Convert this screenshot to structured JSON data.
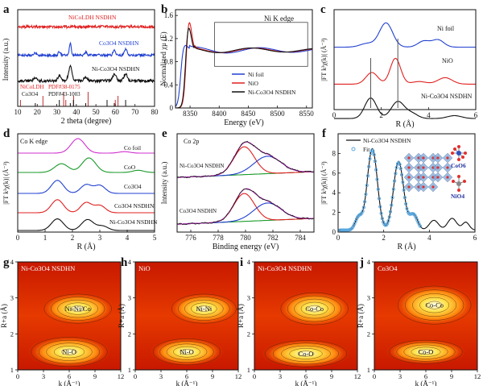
{
  "colors": {
    "black": "#111111",
    "red": "#e02020",
    "blue": "#2040d0",
    "green": "#1a9a2a",
    "magenta": "#d030d0",
    "pdfRed": "#c03030",
    "fit": "#5aa8e0"
  },
  "panels": [
    {
      "letter": "a",
      "type": "line",
      "xlabel": "2 theta (degree)",
      "ylabel": "Intensity (a.u.)",
      "xlim": [
        10,
        80
      ],
      "xticks": [
        10,
        20,
        30,
        40,
        50,
        60,
        70,
        80
      ],
      "labels": [
        {
          "text": "NiCoLDH NSDHN",
          "color": "red"
        },
        {
          "text": "Co3O4 NSDHN",
          "color": "blue"
        },
        {
          "text": "Ni-Co3O4 NSDHN",
          "color": "black"
        },
        {
          "text": "NiCoLDH",
          "color": "red"
        },
        {
          "text": "PDF#38-0175",
          "color": "red"
        },
        {
          "text": "Co3O4",
          "color": "black"
        },
        {
          "text": "PDF#43-1003",
          "color": "black"
        }
      ],
      "ldh_sticks": [
        11.4,
        22.9,
        33.5,
        34.6,
        38.6,
        46.0,
        59.9,
        61.3
      ],
      "co3o4_sticks": [
        19.0,
        31.3,
        36.9,
        38.5,
        44.8,
        55.7,
        59.4,
        65.2
      ]
    },
    {
      "letter": "b",
      "type": "line",
      "title": "Ni K edge",
      "xlabel": "Energy (eV)",
      "ylabel": "Normalized χμ (E)",
      "xlim": [
        8325,
        8560
      ],
      "ylim": [
        0,
        1.7
      ],
      "xticks": [
        8350,
        8400,
        8450,
        8500,
        8550
      ],
      "yticks": [
        0.0,
        0.4,
        0.8,
        1.2,
        1.6
      ],
      "legend": [
        "Ni foil",
        "NiO",
        "Ni-Co3O4 NSDHN"
      ]
    },
    {
      "letter": "c",
      "type": "line",
      "xlabel": "R (Å)",
      "ylabel": "|FT k³χ(k)| (Å⁻³)",
      "xlim": [
        0,
        6
      ],
      "xticks": [
        0,
        2,
        4,
        6
      ],
      "labels": [
        "Ni foil",
        "NiO",
        "Ni-Co3O4 NSDHN"
      ]
    },
    {
      "letter": "d",
      "type": "line",
      "title": "Co K edge",
      "xlabel": "R (Å)",
      "ylabel": "|FT k³χ(k)| (Å⁻³)",
      "xlim": [
        0,
        5
      ],
      "xticks": [
        0,
        1,
        2,
        3,
        4,
        5
      ],
      "labels": [
        "Co foil",
        "CoO",
        "Co3O4",
        "Co3O4 NSDHN",
        "Ni-Co3O4 NSDHN"
      ]
    },
    {
      "letter": "e",
      "type": "line",
      "title": "Co 2p",
      "xlabel": "Binding energy (eV)",
      "ylabel": "Intensity (a.u.)",
      "xlim": [
        775,
        785
      ],
      "xticks": [
        776,
        778,
        780,
        782,
        784
      ],
      "labels": [
        "Ni-Co3O4 NSDHN",
        "Co3O4 NSDHN"
      ]
    },
    {
      "letter": "f",
      "type": "line",
      "xlabel": "R (Å)",
      "ylabel": "|FT k³χ(k)| (Å⁻³)",
      "xlim": [
        0,
        6
      ],
      "ylim": [
        0,
        10
      ],
      "xticks": [
        0,
        2,
        4,
        6
      ],
      "yticks": [
        0,
        2,
        4,
        6,
        8
      ],
      "legend": [
        "Ni-Co3O4 NSDHN",
        "Fit"
      ],
      "annotations": [
        "CoO6",
        "NiO4"
      ]
    },
    {
      "letter": "g",
      "type": "heatmap",
      "title": "Ni-Co3O4 NSDHN",
      "peaks": [
        "Ni-Ni/Co",
        "Ni-O"
      ]
    },
    {
      "letter": "h",
      "type": "heatmap",
      "title": "NiO",
      "peaks": [
        "Ni-Ni",
        "Ni-O"
      ]
    },
    {
      "letter": "i",
      "type": "heatmap",
      "title": "Ni-Co3O4 NSDHN",
      "peaks": [
        "Co-Co",
        "Co-O"
      ]
    },
    {
      "letter": "j",
      "type": "heatmap",
      "title": "Co3O4",
      "peaks": [
        "Co-Co",
        "Co-O"
      ]
    }
  ],
  "chart_data": [
    {
      "type": "line",
      "panel": "a",
      "title": "",
      "xlabel": "2 theta (degree)",
      "ylabel": "Intensity (a.u.)",
      "xlim": [
        10,
        80
      ],
      "series": [
        {
          "name": "NiCoLDH NSDHN"
        },
        {
          "name": "Co3O4 NSDHN"
        },
        {
          "name": "Ni-Co3O4 NSDHN"
        }
      ]
    },
    {
      "type": "line",
      "panel": "b",
      "title": "Ni K edge",
      "xlabel": "Energy (eV)",
      "ylabel": "Normalized χμ (E)",
      "xlim": [
        8325,
        8560
      ],
      "ylim": [
        0,
        1.7
      ],
      "series": [
        {
          "name": "Ni foil"
        },
        {
          "name": "NiO"
        },
        {
          "name": "Ni-Co3O4 NSDHN"
        }
      ]
    },
    {
      "type": "line",
      "panel": "c",
      "xlabel": "R (Å)",
      "ylabel": "|FT k³χ(k)| (Å⁻³)",
      "xlim": [
        0,
        6
      ],
      "series": [
        {
          "name": "Ni foil"
        },
        {
          "name": "NiO"
        },
        {
          "name": "Ni-Co3O4 NSDHN"
        }
      ]
    },
    {
      "type": "line",
      "panel": "d",
      "title": "Co K edge",
      "xlabel": "R (Å)",
      "ylabel": "|FT k³χ(k)| (Å⁻³)",
      "xlim": [
        0,
        5
      ],
      "series": [
        {
          "name": "Co foil"
        },
        {
          "name": "CoO"
        },
        {
          "name": "Co3O4"
        },
        {
          "name": "Co3O4 NSDHN"
        },
        {
          "name": "Ni-Co3O4 NSDHN"
        }
      ]
    },
    {
      "type": "line",
      "panel": "e",
      "title": "Co 2p",
      "xlabel": "Binding energy (eV)",
      "ylabel": "Intensity (a.u.)",
      "xlim": [
        775,
        785
      ],
      "series": [
        {
          "name": "Ni-Co3O4 NSDHN"
        },
        {
          "name": "Co3O4 NSDHN"
        }
      ]
    },
    {
      "type": "line",
      "panel": "f",
      "xlabel": "R (Å)",
      "ylabel": "|FT k³χ(k)| (Å⁻³)",
      "xlim": [
        0,
        6
      ],
      "ylim": [
        0,
        10
      ],
      "series": [
        {
          "name": "Ni-Co3O4 NSDHN"
        },
        {
          "name": "Fit"
        }
      ]
    },
    {
      "type": "heatmap",
      "panel": "g",
      "title": "Ni-Co3O4 NSDHN",
      "xlabel": "k (Å⁻¹)",
      "ylabel": "R+a (Å)",
      "xlim": [
        0,
        12
      ],
      "ylim": [
        1,
        4
      ],
      "peaks": [
        {
          "label": "Ni-Ni/Co",
          "k": 7,
          "R": 2.7
        },
        {
          "label": "Ni-O",
          "k": 6,
          "R": 1.5
        }
      ]
    },
    {
      "type": "heatmap",
      "panel": "h",
      "title": "NiO",
      "xlabel": "k (Å⁻¹)",
      "ylabel": "R+a (Å)",
      "xlim": [
        0,
        12
      ],
      "ylim": [
        1,
        4
      ],
      "peaks": [
        {
          "label": "Ni-Ni",
          "k": 8,
          "R": 2.7
        },
        {
          "label": "Ni-O",
          "k": 6,
          "R": 1.5
        }
      ]
    },
    {
      "type": "heatmap",
      "panel": "i",
      "title": "Ni-Co3O4 NSDHN",
      "xlabel": "k (Å⁻¹)",
      "ylabel": "R+a (Å)",
      "xlim": [
        0,
        12
      ],
      "ylim": [
        1,
        4
      ],
      "peaks": [
        {
          "label": "Co-Co",
          "k": 7,
          "R": 2.7
        },
        {
          "label": "Co-O",
          "k": 6,
          "R": 1.5
        }
      ]
    },
    {
      "type": "heatmap",
      "panel": "j",
      "title": "Co3O4",
      "xlabel": "k (Å⁻¹)",
      "ylabel": "R+a (Å)",
      "xlim": [
        0,
        12
      ],
      "ylim": [
        1,
        4
      ],
      "peaks": [
        {
          "label": "Co-Co",
          "k": 7,
          "R": 2.8
        },
        {
          "label": "Co-O",
          "k": 6,
          "R": 1.5
        }
      ]
    }
  ],
  "heatmap_axis": {
    "xlabel": "k (Å⁻¹)",
    "ylabel": "R+a (Å)",
    "xticks": [
      0,
      3,
      6,
      9,
      12
    ],
    "yticks": [
      1,
      2,
      3,
      4
    ]
  }
}
